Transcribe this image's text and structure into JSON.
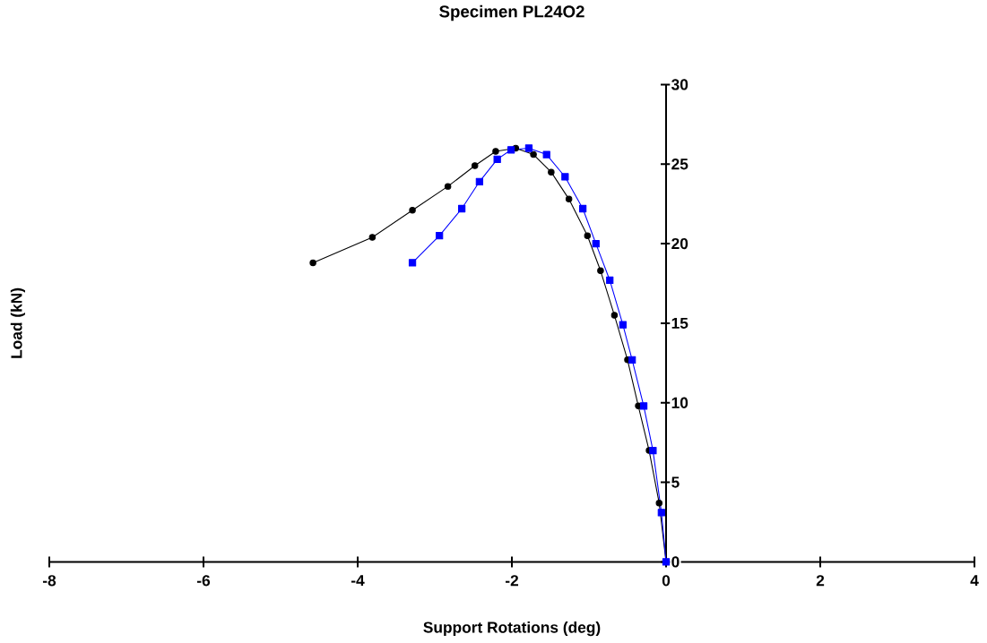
{
  "chart_data": {
    "type": "line",
    "title": "Specimen PL24O2",
    "xlabel": "Support Rotations  (deg)",
    "ylabel": "Load  (kN)",
    "series": [
      {
        "color": "#000000",
        "marker": "circle",
        "x": [
          -4.58,
          -3.81,
          -3.29,
          -2.83,
          -2.48,
          -2.21,
          -1.95,
          -1.72,
          -1.49,
          -1.26,
          -1.02,
          -0.85,
          -0.67,
          -0.5,
          -0.36,
          -0.22,
          -0.09,
          0
        ],
        "values": [
          18.8,
          20.4,
          22.1,
          23.6,
          24.9,
          25.8,
          26.0,
          25.6,
          24.5,
          22.8,
          20.5,
          18.3,
          15.5,
          12.7,
          9.8,
          7.0,
          3.7,
          0
        ]
      },
      {
        "color": "#0000ff",
        "marker": "square",
        "x": [
          -3.29,
          -2.94,
          -2.65,
          -2.42,
          -2.19,
          -2.01,
          -1.78,
          -1.55,
          -1.31,
          -1.08,
          -0.91,
          -0.73,
          -0.56,
          -0.44,
          -0.29,
          -0.17,
          -0.06,
          0
        ],
        "values": [
          18.8,
          20.5,
          22.2,
          23.9,
          25.3,
          25.9,
          26.0,
          25.6,
          24.2,
          22.2,
          20.0,
          17.7,
          14.9,
          12.7,
          9.8,
          7.0,
          3.1,
          0
        ]
      }
    ],
    "xlim": [
      -8,
      4
    ],
    "xticks": [
      -8,
      -6,
      -4,
      -2,
      0,
      2,
      4
    ],
    "ylim": [
      0,
      30
    ],
    "yticks": [
      0,
      5,
      10,
      15,
      20,
      25,
      30
    ],
    "grid": false
  }
}
